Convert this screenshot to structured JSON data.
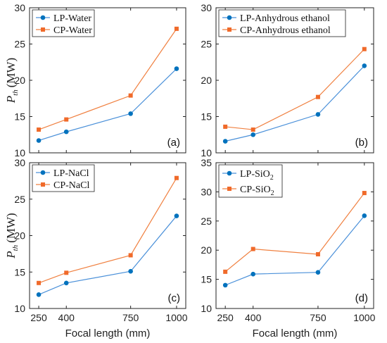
{
  "colors": {
    "lp": "#0072BD",
    "cp": "#F06A2A",
    "lp_line": "#4A90D9",
    "cp_line": "#F08040"
  },
  "shared": {
    "ylabel_main": "P",
    "ylabel_sub": "th",
    "ylabel_unit": "(MW)",
    "xlabel": "Focal length (mm)"
  },
  "chart_data": [
    {
      "type": "line",
      "panel": "(a)",
      "x": [
        250,
        400,
        750,
        1000
      ],
      "xticks": [
        "250",
        "400",
        "750",
        "1000"
      ],
      "ylim": [
        10,
        30
      ],
      "yticks": [
        "10",
        "15",
        "20",
        "25",
        "30"
      ],
      "series": [
        {
          "name": "LP-Water",
          "name_sub": "",
          "name_tail": "",
          "values": [
            11.7,
            12.9,
            15.4,
            21.6
          ]
        },
        {
          "name": "CP-Water",
          "name_sub": "",
          "name_tail": "",
          "values": [
            13.2,
            14.6,
            17.9,
            27.1
          ]
        }
      ],
      "legend": "top-left",
      "xlabel": "",
      "ylabel": true
    },
    {
      "type": "line",
      "panel": "(b)",
      "x": [
        250,
        400,
        750,
        1000
      ],
      "xticks": [
        "250",
        "400",
        "750",
        "1000"
      ],
      "ylim": [
        10,
        30
      ],
      "yticks": [
        "10",
        "15",
        "20",
        "25",
        "30"
      ],
      "series": [
        {
          "name": "LP-Anhydrous ethanol",
          "name_sub": "",
          "name_tail": "",
          "values": [
            11.6,
            12.5,
            15.3,
            22.0
          ]
        },
        {
          "name": "CP-Anhydrous ethanol",
          "name_sub": "",
          "name_tail": "",
          "values": [
            13.6,
            13.2,
            17.7,
            24.3
          ]
        }
      ],
      "legend": "top-left",
      "xlabel": "",
      "ylabel": false
    },
    {
      "type": "line",
      "panel": "(c)",
      "x": [
        250,
        400,
        750,
        1000
      ],
      "xticks": [
        "250",
        "400",
        "750",
        "1000"
      ],
      "ylim": [
        10,
        30
      ],
      "yticks": [
        "10",
        "15",
        "20",
        "25",
        "30"
      ],
      "series": [
        {
          "name": "LP-NaCl",
          "name_sub": "",
          "name_tail": "",
          "values": [
            11.9,
            13.5,
            15.1,
            22.7
          ]
        },
        {
          "name": "CP-NaCl",
          "name_sub": "",
          "name_tail": "",
          "values": [
            13.5,
            14.9,
            17.3,
            27.9
          ]
        }
      ],
      "legend": "top-left",
      "xlabel": "Focal length (mm)",
      "ylabel": true
    },
    {
      "type": "line",
      "panel": "(d)",
      "x": [
        250,
        400,
        750,
        1000
      ],
      "xticks": [
        "250",
        "400",
        "750",
        "1000"
      ],
      "ylim": [
        10,
        35
      ],
      "yticks": [
        "10",
        "15",
        "20",
        "25",
        "30",
        "35"
      ],
      "series": [
        {
          "name": "LP-SiO",
          "name_sub": "2",
          "name_tail": "",
          "values": [
            14.0,
            15.9,
            16.2,
            25.9
          ]
        },
        {
          "name": "CP-SiO",
          "name_sub": "2",
          "name_tail": "",
          "values": [
            16.3,
            20.2,
            19.3,
            29.8
          ]
        }
      ],
      "legend": "top-left",
      "xlabel": "Focal length (mm)",
      "ylabel": false
    }
  ]
}
